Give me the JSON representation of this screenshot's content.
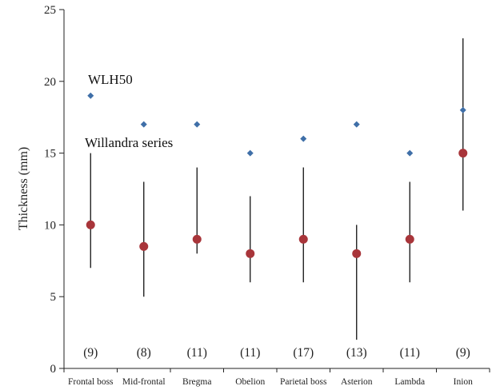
{
  "chart_data": {
    "type": "scatter",
    "ylabel": "Thickness (mm)",
    "ylim": [
      0,
      25
    ],
    "yticks": [
      0,
      5,
      10,
      15,
      20,
      25
    ],
    "grid": false,
    "categories": [
      "Frontal boss",
      "Mid-frontal",
      "Bregma",
      "Obelion",
      "Parietal boss",
      "Asterion",
      "Lambda",
      "Inion"
    ],
    "counts": [
      "(9)",
      "(8)",
      "(11)",
      "(11)",
      "(17)",
      "(13)",
      "(11)",
      "(9)"
    ],
    "series": [
      {
        "name": "WLH50",
        "marker": "diamond",
        "color": "#3f6fa8",
        "values": [
          19,
          17,
          17,
          15,
          16,
          17,
          15,
          18
        ]
      },
      {
        "name": "Willandra series",
        "marker": "circle",
        "color": "#a8353a",
        "values": [
          10,
          8.5,
          9,
          8,
          9,
          8,
          9,
          15
        ],
        "range_low": [
          7,
          5,
          8,
          6,
          6,
          2,
          6,
          11
        ],
        "range_high": [
          15,
          13,
          14,
          12,
          14,
          10,
          13,
          23
        ]
      }
    ],
    "annotations": [
      "WLH50",
      "Willandra series"
    ]
  }
}
